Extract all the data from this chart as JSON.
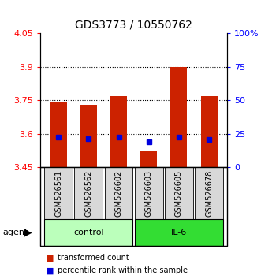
{
  "title": "GDS3773 / 10550762",
  "samples": [
    "GSM526561",
    "GSM526562",
    "GSM526602",
    "GSM526603",
    "GSM526605",
    "GSM526678"
  ],
  "groups": [
    "control",
    "control",
    "control",
    "IL-6",
    "IL-6",
    "IL-6"
  ],
  "bar_tops": [
    3.74,
    3.73,
    3.77,
    3.525,
    3.9,
    3.77
  ],
  "bar_base": 3.45,
  "blue_markers": [
    3.585,
    3.58,
    3.585,
    3.565,
    3.585,
    3.575
  ],
  "bar_color": "#cc2200",
  "blue_color": "#0000dd",
  "ylim_left": [
    3.45,
    4.05
  ],
  "ylim_right": [
    0,
    100
  ],
  "yticks_left": [
    3.45,
    3.6,
    3.75,
    3.9,
    4.05
  ],
  "ytick_labels_left": [
    "3.45",
    "3.6",
    "3.75",
    "3.9",
    "4.05"
  ],
  "yticks_right": [
    0,
    25,
    50,
    75,
    100
  ],
  "ytick_labels_right": [
    "0",
    "25",
    "50",
    "75",
    "100%"
  ],
  "grid_lines": [
    3.6,
    3.75,
    3.9
  ],
  "control_color": "#bbffbb",
  "il6_color": "#33dd33",
  "group_label_control": "control",
  "group_label_il6": "IL-6",
  "legend_red": "transformed count",
  "legend_blue": "percentile rank within the sample",
  "agent_label": "agent",
  "bar_width": 0.55,
  "title_fontsize": 10,
  "tick_fontsize": 8,
  "sample_fontsize": 7,
  "group_fontsize": 8,
  "legend_fontsize": 7
}
